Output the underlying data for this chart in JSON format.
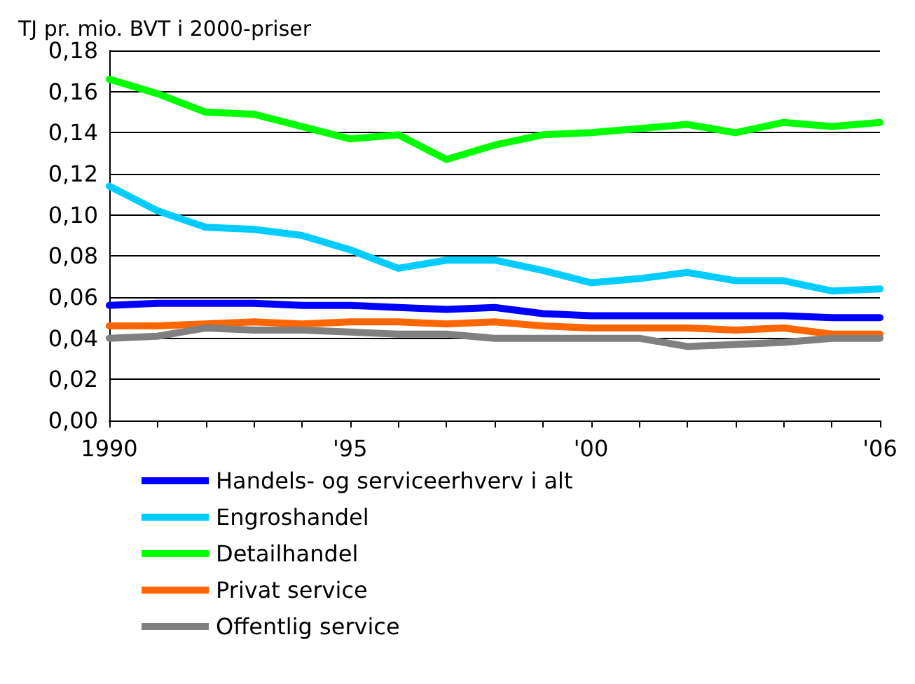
{
  "chart_data": {
    "type": "line",
    "title": "TJ pr. mio. BVT i 2000-priser",
    "x": [
      1990,
      1991,
      1992,
      1993,
      1994,
      1995,
      1996,
      1997,
      1998,
      1999,
      2000,
      2001,
      2002,
      2003,
      2004,
      2005,
      2006
    ],
    "series": [
      {
        "name": "Handels- og serviceerhverv i alt",
        "color": "#0000ff",
        "values": [
          0.056,
          0.057,
          0.057,
          0.057,
          0.056,
          0.056,
          0.055,
          0.054,
          0.055,
          0.052,
          0.051,
          0.051,
          0.051,
          0.051,
          0.051,
          0.05,
          0.05
        ]
      },
      {
        "name": "Engroshandel",
        "color": "#00ccff",
        "values": [
          0.114,
          0.102,
          0.094,
          0.093,
          0.09,
          0.083,
          0.074,
          0.078,
          0.078,
          0.073,
          0.067,
          0.069,
          0.072,
          0.068,
          0.068,
          0.063,
          0.064
        ]
      },
      {
        "name": "Detailhandel",
        "color": "#00ff00",
        "values": [
          0.166,
          0.159,
          0.15,
          0.149,
          0.143,
          0.137,
          0.139,
          0.127,
          0.134,
          0.139,
          0.14,
          0.142,
          0.144,
          0.14,
          0.145,
          0.143,
          0.145
        ]
      },
      {
        "name": "Privat service",
        "color": "#ff6600",
        "values": [
          0.046,
          0.046,
          0.047,
          0.048,
          0.047,
          0.048,
          0.048,
          0.047,
          0.048,
          0.046,
          0.045,
          0.045,
          0.045,
          0.044,
          0.045,
          0.042,
          0.042
        ]
      },
      {
        "name": "Offentlig service",
        "color": "#808080",
        "values": [
          0.04,
          0.041,
          0.045,
          0.044,
          0.044,
          0.043,
          0.042,
          0.042,
          0.04,
          0.04,
          0.04,
          0.04,
          0.036,
          0.037,
          0.038,
          0.04,
          0.04
        ]
      }
    ],
    "xlim": [
      1990,
      2006
    ],
    "xticks": [
      1990,
      {
        "value": 1991,
        "label": null
      },
      {
        "value": 1992,
        "label": null
      },
      {
        "value": 1993,
        "label": null
      },
      {
        "value": 1994,
        "label": null
      },
      {
        "value": 1995,
        "label": "'95"
      },
      {
        "value": 1996,
        "label": null
      },
      {
        "value": 1997,
        "label": null
      },
      {
        "value": 1998,
        "label": null
      },
      {
        "value": 1999,
        "label": null
      },
      {
        "value": 2000,
        "label": "'00"
      },
      {
        "value": 2001,
        "label": null
      },
      {
        "value": 2002,
        "label": null
      },
      {
        "value": 2003,
        "label": null
      },
      {
        "value": 2004,
        "label": null
      },
      {
        "value": 2005,
        "label": null
      },
      {
        "value": 2006,
        "label": "'06"
      }
    ],
    "ylim": [
      0,
      0.18
    ],
    "yticks": [
      {
        "value": 0,
        "label": "0,00"
      },
      {
        "value": 0.02,
        "label": "0,02"
      },
      {
        "value": 0.04,
        "label": "0,04"
      },
      {
        "value": 0.06,
        "label": "0,06"
      },
      {
        "value": 0.08,
        "label": "0,08"
      },
      {
        "value": 0.1,
        "label": "0,10"
      },
      {
        "value": 0.12,
        "label": "0,12"
      },
      {
        "value": 0.14,
        "label": "0,14"
      },
      {
        "value": 0.16,
        "label": "0,16"
      },
      {
        "value": 0.18,
        "label": "0,18"
      }
    ],
    "grid": "y",
    "legend": "bottom",
    "marker": "none",
    "line_style": "solid"
  }
}
